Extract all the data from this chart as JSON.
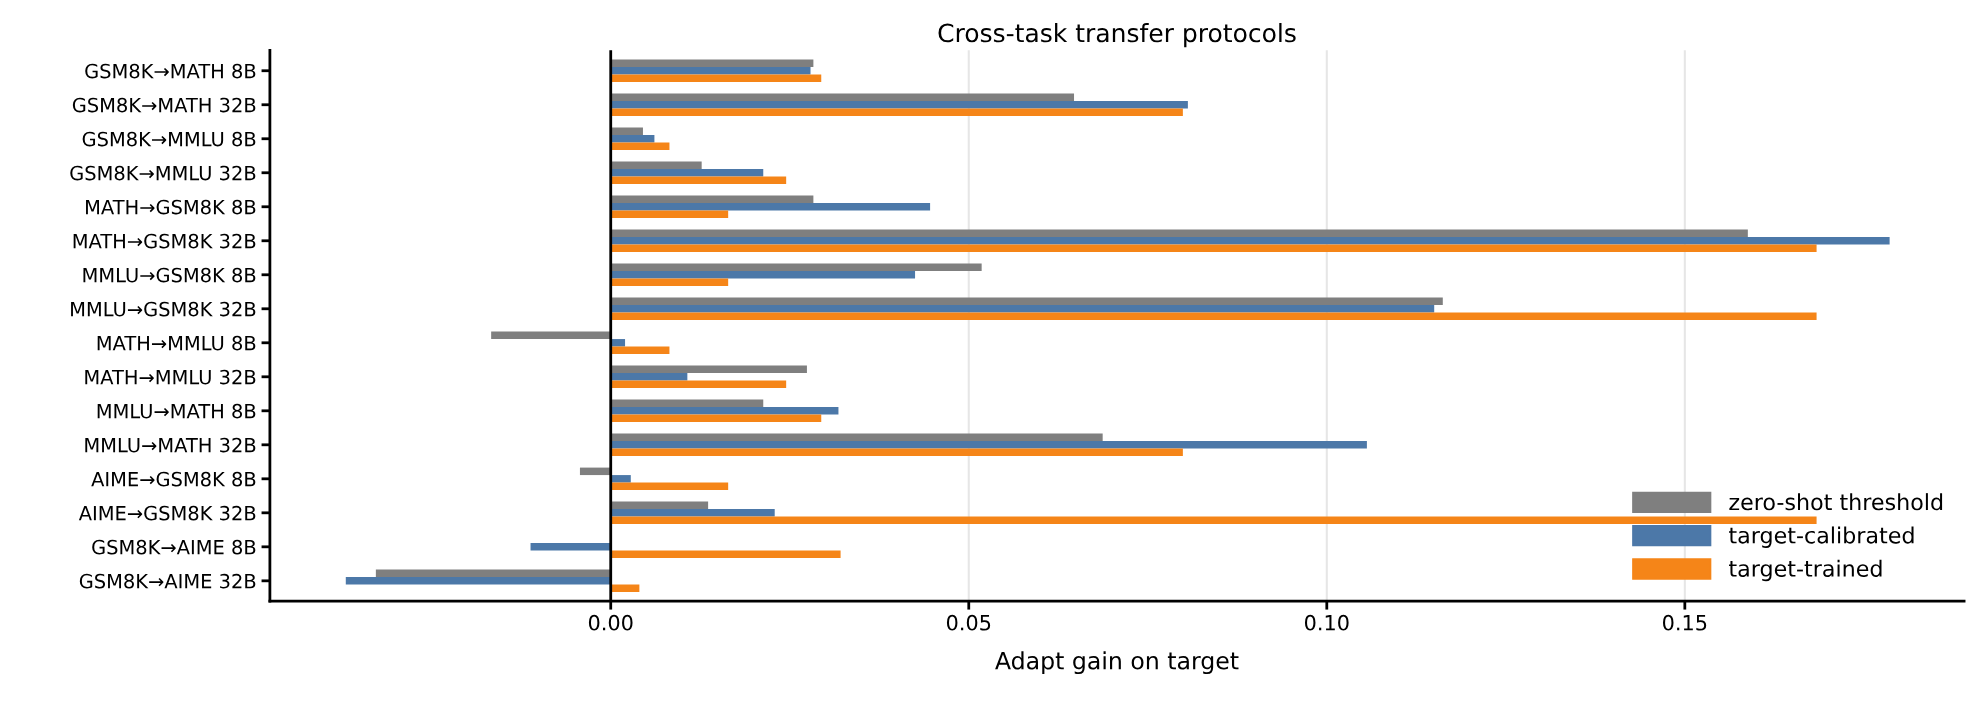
{
  "chart_data": {
    "type": "bar",
    "orientation": "horizontal",
    "title": "Cross-task transfer protocols",
    "xlabel": "Adapt gain on target",
    "categories": [
      "GSM8K→MATH 8B",
      "GSM8K→MATH 32B",
      "GSM8K→MMLU 8B",
      "GSM8K→MMLU 32B",
      "MATH→GSM8K 8B",
      "MATH→GSM8K 32B",
      "MMLU→GSM8K 8B",
      "MMLU→GSM8K 32B",
      "MATH→MMLU 8B",
      "MATH→MMLU 32B",
      "MMLU→MATH 8B",
      "MMLU→MATH 32B",
      "AIME→GSM8K 8B",
      "AIME→GSM8K 32B",
      "GSM8K→AIME 8B",
      "GSM8K→AIME 32B"
    ],
    "series": [
      {
        "name": "zero-shot threshold",
        "color": "#7f7f7f",
        "values": [
          0.0283,
          0.0647,
          0.0045,
          0.0127,
          0.0283,
          0.1588,
          0.0518,
          0.1162,
          -0.0167,
          0.0274,
          0.0213,
          0.0687,
          -0.0043,
          0.0136,
          0.0,
          -0.0328
        ]
      },
      {
        "name": "target-calibrated",
        "color": "#4c78a8",
        "values": [
          0.0279,
          0.0806,
          0.0061,
          0.0213,
          0.0446,
          0.1786,
          0.0425,
          0.115,
          0.002,
          0.0107,
          0.0318,
          0.1056,
          0.0028,
          0.0229,
          -0.0112,
          -0.037
        ]
      },
      {
        "name": "target-trained",
        "color": "#f58518",
        "values": [
          0.0294,
          0.0799,
          0.0082,
          0.0245,
          0.0164,
          0.1684,
          0.0164,
          0.1684,
          0.0082,
          0.0245,
          0.0294,
          0.0799,
          0.0164,
          0.1684,
          0.0321,
          0.004
        ]
      }
    ],
    "xlim": [
      -0.0476,
      0.189
    ],
    "xticks": [
      {
        "value": 0,
        "label": "0.00"
      },
      {
        "value": 0.05,
        "label": "0.05"
      },
      {
        "value": 0.1,
        "label": "0.10"
      },
      {
        "value": 0.15,
        "label": "0.15"
      }
    ],
    "ref_lines": [
      {
        "axis": "x",
        "value": 0,
        "color": "#000000"
      }
    ],
    "grid": "x",
    "legend": "bottom right"
  }
}
